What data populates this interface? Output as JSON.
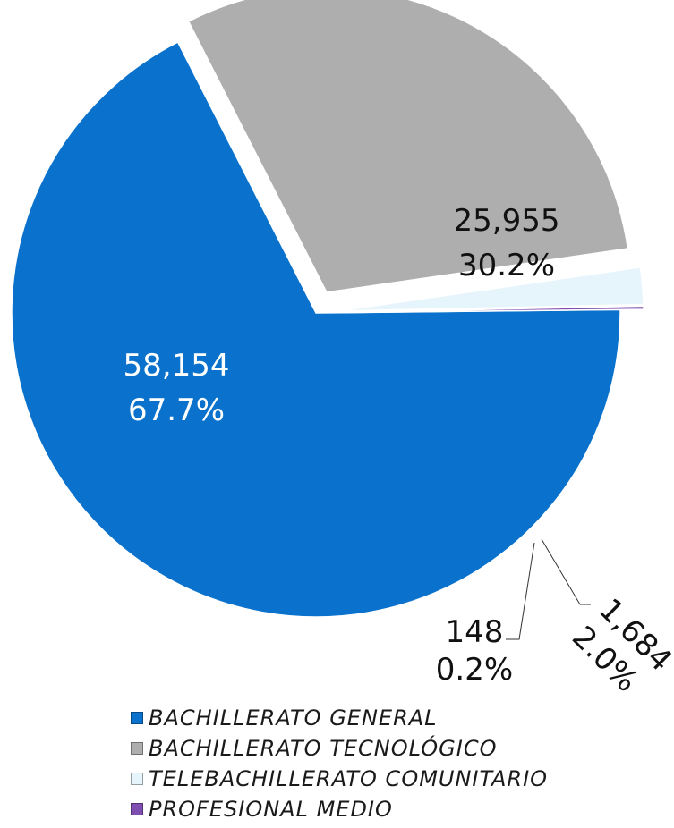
{
  "chart_data": {
    "type": "pie",
    "exploded": true,
    "slices": [
      {
        "name": "BACHILLERATO GENERAL",
        "value": 58154,
        "value_label": "58,154",
        "percent_label": "67.7%",
        "color": "#0A72CC",
        "label_color": "#ffffff"
      },
      {
        "name": "BACHILLERATO TECNOLÓGICO",
        "value": 25955,
        "value_label": "25,955",
        "percent_label": "30.2%",
        "color": "#AEAEAE",
        "label_color": "#111111"
      },
      {
        "name": "TELEBACHILLERATO COMUNITARIO",
        "value": 1684,
        "value_label": "1,684",
        "percent_label": "2.0%",
        "color": "#E6F4FB",
        "label_color": "#111111"
      },
      {
        "name": "PROFESIONAL MEDIO",
        "value": 148,
        "value_label": "148",
        "percent_label": "0.2%",
        "color": "#7E4FB0",
        "label_color": "#111111"
      }
    ],
    "legend_position": "bottom"
  }
}
